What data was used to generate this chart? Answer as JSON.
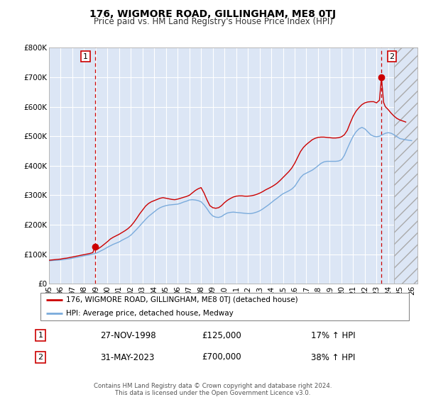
{
  "title": "176, WIGMORE ROAD, GILLINGHAM, ME8 0TJ",
  "subtitle": "Price paid vs. HM Land Registry's House Price Index (HPI)",
  "ylim": [
    0,
    800000
  ],
  "xlim_start": 1995,
  "xlim_end": 2026.5,
  "hatch_start": 2024.5,
  "yticks": [
    0,
    100000,
    200000,
    300000,
    400000,
    500000,
    600000,
    700000,
    800000
  ],
  "ytick_labels": [
    "£0",
    "£100K",
    "£200K",
    "£300K",
    "£400K",
    "£500K",
    "£600K",
    "£700K",
    "£800K"
  ],
  "xticks": [
    1995,
    1996,
    1997,
    1998,
    1999,
    2000,
    2001,
    2002,
    2003,
    2004,
    2005,
    2006,
    2007,
    2008,
    2009,
    2010,
    2011,
    2012,
    2013,
    2014,
    2015,
    2016,
    2017,
    2018,
    2019,
    2020,
    2021,
    2022,
    2023,
    2024,
    2025,
    2026
  ],
  "background_color": "#ffffff",
  "plot_bg_color": "#dce6f5",
  "grid_color": "#ffffff",
  "red_line_color": "#cc0000",
  "blue_line_color": "#7aabdc",
  "vline_color": "#cc0000",
  "point1_x": 1998.92,
  "point1_y": 125000,
  "point2_x": 2023.42,
  "point2_y": 700000,
  "legend_label_red": "176, WIGMORE ROAD, GILLINGHAM, ME8 0TJ (detached house)",
  "legend_label_blue": "HPI: Average price, detached house, Medway",
  "table_row1": [
    "1",
    "27-NOV-1998",
    "£125,000",
    "17% ↑ HPI"
  ],
  "table_row2": [
    "2",
    "31-MAY-2023",
    "£700,000",
    "38% ↑ HPI"
  ],
  "footer_line1": "Contains HM Land Registry data © Crown copyright and database right 2024.",
  "footer_line2": "This data is licensed under the Open Government Licence v3.0.",
  "hpi_years": [
    1995.0,
    1995.25,
    1995.5,
    1995.75,
    1996.0,
    1996.25,
    1996.5,
    1996.75,
    1997.0,
    1997.25,
    1997.5,
    1997.75,
    1998.0,
    1998.25,
    1998.5,
    1998.75,
    1999.0,
    1999.25,
    1999.5,
    1999.75,
    2000.0,
    2000.25,
    2000.5,
    2000.75,
    2001.0,
    2001.25,
    2001.5,
    2001.75,
    2002.0,
    2002.25,
    2002.5,
    2002.75,
    2003.0,
    2003.25,
    2003.5,
    2003.75,
    2004.0,
    2004.25,
    2004.5,
    2004.75,
    2005.0,
    2005.25,
    2005.5,
    2005.75,
    2006.0,
    2006.25,
    2006.5,
    2006.75,
    2007.0,
    2007.25,
    2007.5,
    2007.75,
    2008.0,
    2008.25,
    2008.5,
    2008.75,
    2009.0,
    2009.25,
    2009.5,
    2009.75,
    2010.0,
    2010.25,
    2010.5,
    2010.75,
    2011.0,
    2011.25,
    2011.5,
    2011.75,
    2012.0,
    2012.25,
    2012.5,
    2012.75,
    2013.0,
    2013.25,
    2013.5,
    2013.75,
    2014.0,
    2014.25,
    2014.5,
    2014.75,
    2015.0,
    2015.25,
    2015.5,
    2015.75,
    2016.0,
    2016.25,
    2016.5,
    2016.75,
    2017.0,
    2017.25,
    2017.5,
    2017.75,
    2018.0,
    2018.25,
    2018.5,
    2018.75,
    2019.0,
    2019.25,
    2019.5,
    2019.75,
    2020.0,
    2020.25,
    2020.5,
    2020.75,
    2021.0,
    2021.25,
    2021.5,
    2021.75,
    2022.0,
    2022.25,
    2022.5,
    2022.75,
    2023.0,
    2023.25,
    2023.5,
    2023.75,
    2024.0,
    2024.25,
    2024.5,
    2024.75,
    2025.0,
    2025.5,
    2026.0
  ],
  "hpi_values": [
    78000,
    79000,
    79500,
    80000,
    81000,
    82000,
    84000,
    85000,
    87000,
    89000,
    91000,
    93000,
    95000,
    97000,
    99000,
    101000,
    103000,
    108000,
    113000,
    118000,
    124000,
    129000,
    134000,
    138000,
    142000,
    148000,
    153000,
    158000,
    165000,
    175000,
    185000,
    196000,
    207000,
    218000,
    228000,
    236000,
    244000,
    252000,
    258000,
    262000,
    265000,
    267000,
    268000,
    269000,
    270000,
    273000,
    277000,
    280000,
    284000,
    285000,
    284000,
    282000,
    278000,
    268000,
    255000,
    240000,
    230000,
    226000,
    225000,
    228000,
    235000,
    240000,
    242000,
    243000,
    242000,
    241000,
    240000,
    239000,
    238000,
    238000,
    240000,
    243000,
    247000,
    253000,
    260000,
    267000,
    275000,
    283000,
    290000,
    298000,
    305000,
    310000,
    315000,
    321000,
    330000,
    345000,
    360000,
    370000,
    375000,
    380000,
    385000,
    392000,
    400000,
    408000,
    413000,
    415000,
    415000,
    415000,
    415000,
    416000,
    420000,
    435000,
    458000,
    480000,
    500000,
    515000,
    525000,
    530000,
    525000,
    515000,
    505000,
    500000,
    498000,
    500000,
    505000,
    510000,
    512000,
    510000,
    505000,
    498000,
    492000,
    488000,
    485000
  ],
  "red_years": [
    1995.0,
    1995.25,
    1995.5,
    1995.75,
    1996.0,
    1996.25,
    1996.5,
    1996.75,
    1997.0,
    1997.25,
    1997.5,
    1997.75,
    1998.0,
    1998.25,
    1998.5,
    1998.75,
    1998.92,
    1999.0,
    1999.25,
    1999.5,
    1999.75,
    2000.0,
    2000.25,
    2000.5,
    2000.75,
    2001.0,
    2001.25,
    2001.5,
    2001.75,
    2002.0,
    2002.25,
    2002.5,
    2002.75,
    2003.0,
    2003.25,
    2003.5,
    2003.75,
    2004.0,
    2004.25,
    2004.5,
    2004.75,
    2005.0,
    2005.25,
    2005.5,
    2005.75,
    2006.0,
    2006.25,
    2006.5,
    2006.75,
    2007.0,
    2007.25,
    2007.5,
    2007.75,
    2008.0,
    2008.25,
    2008.5,
    2008.75,
    2009.0,
    2009.25,
    2009.5,
    2009.75,
    2010.0,
    2010.25,
    2010.5,
    2010.75,
    2011.0,
    2011.25,
    2011.5,
    2011.75,
    2012.0,
    2012.25,
    2012.5,
    2012.75,
    2013.0,
    2013.25,
    2013.5,
    2013.75,
    2014.0,
    2014.25,
    2014.5,
    2014.75,
    2015.0,
    2015.25,
    2015.5,
    2015.75,
    2016.0,
    2016.25,
    2016.5,
    2016.75,
    2017.0,
    2017.25,
    2017.5,
    2017.75,
    2018.0,
    2018.25,
    2018.5,
    2018.75,
    2019.0,
    2019.25,
    2019.5,
    2019.75,
    2020.0,
    2020.25,
    2020.5,
    2020.75,
    2021.0,
    2021.25,
    2021.5,
    2021.75,
    2022.0,
    2022.25,
    2022.5,
    2022.75,
    2023.0,
    2023.25,
    2023.42,
    2023.6,
    2023.75,
    2024.0,
    2024.25,
    2024.5,
    2024.75,
    2025.0,
    2025.5
  ],
  "red_values": [
    80000,
    81000,
    82000,
    83000,
    84000,
    86000,
    87000,
    89000,
    91000,
    93000,
    95000,
    97000,
    99000,
    101000,
    103000,
    106000,
    125000,
    115000,
    120000,
    127000,
    135000,
    143000,
    152000,
    158000,
    163000,
    168000,
    174000,
    180000,
    187000,
    196000,
    208000,
    222000,
    237000,
    250000,
    263000,
    272000,
    278000,
    282000,
    286000,
    290000,
    292000,
    290000,
    288000,
    286000,
    285000,
    287000,
    290000,
    293000,
    296000,
    300000,
    308000,
    316000,
    322000,
    326000,
    308000,
    285000,
    265000,
    258000,
    256000,
    258000,
    265000,
    275000,
    283000,
    289000,
    294000,
    297000,
    298000,
    298000,
    297000,
    297000,
    298000,
    300000,
    303000,
    307000,
    312000,
    318000,
    323000,
    328000,
    334000,
    341000,
    350000,
    360000,
    370000,
    380000,
    392000,
    408000,
    428000,
    448000,
    462000,
    472000,
    480000,
    488000,
    493000,
    496000,
    497000,
    497000,
    496000,
    495000,
    494000,
    494000,
    495000,
    498000,
    505000,
    520000,
    545000,
    568000,
    585000,
    597000,
    607000,
    613000,
    616000,
    617000,
    617000,
    613000,
    622000,
    700000,
    615000,
    600000,
    590000,
    578000,
    568000,
    560000,
    555000,
    548000
  ]
}
